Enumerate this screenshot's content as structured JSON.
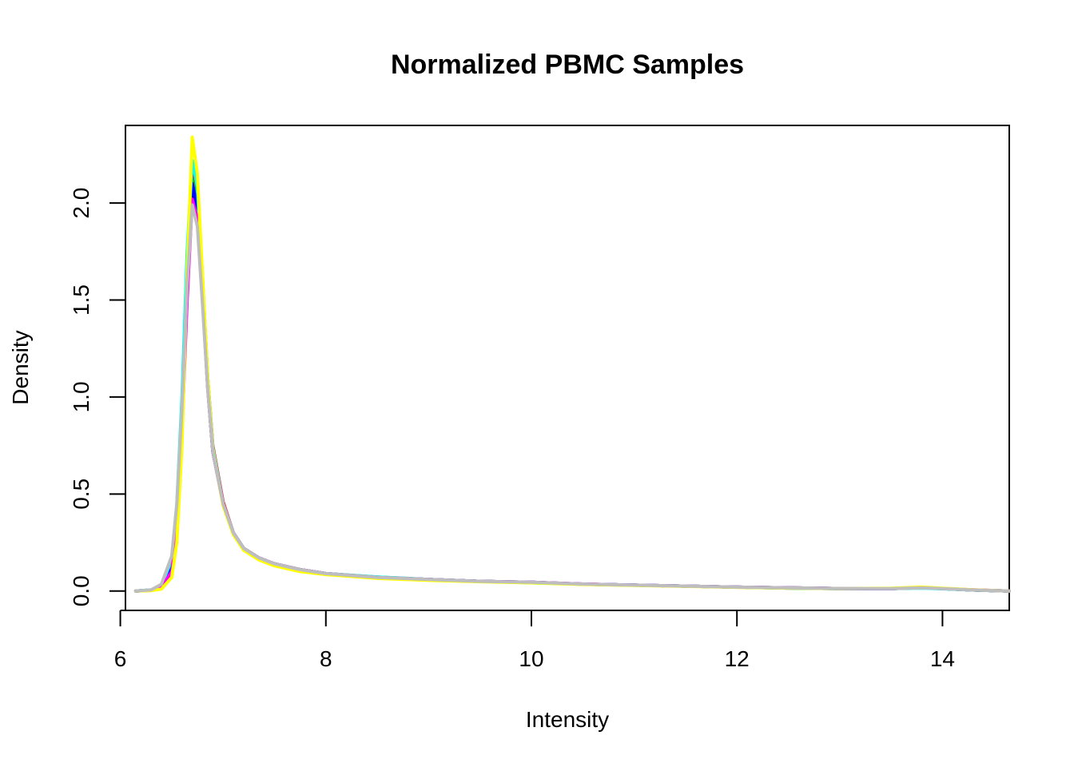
{
  "chart_data": {
    "type": "line",
    "title": "Normalized PBMC Samples",
    "xlabel": "Intensity",
    "ylabel": "Density",
    "xlim": [
      6.05,
      14.65
    ],
    "ylim": [
      -0.1,
      2.4
    ],
    "xticks": [
      6,
      8,
      10,
      12,
      14
    ],
    "yticks": [
      0.0,
      0.5,
      1.0,
      1.5,
      2.0
    ],
    "xtick_labels": [
      "6",
      "8",
      "10",
      "12",
      "14"
    ],
    "ytick_labels": [
      "0.0",
      "0.5",
      "1.0",
      "1.5",
      "2.0"
    ],
    "grid": false,
    "legend": "none",
    "x": [
      6.15,
      6.3,
      6.4,
      6.5,
      6.55,
      6.6,
      6.65,
      6.7,
      6.75,
      6.8,
      6.85,
      6.9,
      7.0,
      7.1,
      7.2,
      7.35,
      7.5,
      7.75,
      8.0,
      8.5,
      9.0,
      9.5,
      10.0,
      10.5,
      11.0,
      11.5,
      12.0,
      12.5,
      13.0,
      13.5,
      13.8,
      14.0,
      14.3,
      14.65
    ],
    "series": [
      {
        "color": "#000000",
        "peak": 2.08,
        "values": [
          0.0,
          0.005,
          0.03,
          0.15,
          0.4,
          0.9,
          1.6,
          2.08,
          1.95,
          1.5,
          1.05,
          0.72,
          0.45,
          0.3,
          0.22,
          0.17,
          0.14,
          0.11,
          0.09,
          0.07,
          0.06,
          0.05,
          0.045,
          0.035,
          0.03,
          0.025,
          0.02,
          0.015,
          0.012,
          0.012,
          0.018,
          0.012,
          0.005,
          0.0
        ]
      },
      {
        "color": "#FF0000",
        "peak": 2.18,
        "values": [
          0.0,
          0.004,
          0.02,
          0.12,
          0.38,
          0.95,
          1.7,
          2.18,
          2.05,
          1.6,
          1.1,
          0.75,
          0.46,
          0.3,
          0.22,
          0.165,
          0.135,
          0.105,
          0.088,
          0.068,
          0.058,
          0.05,
          0.043,
          0.036,
          0.03,
          0.025,
          0.02,
          0.016,
          0.013,
          0.012,
          0.016,
          0.012,
          0.005,
          0.0
        ]
      },
      {
        "color": "#00CD00",
        "peak": 2.12,
        "values": [
          0.0,
          0.005,
          0.025,
          0.14,
          0.4,
          0.93,
          1.65,
          2.12,
          2.0,
          1.55,
          1.07,
          0.73,
          0.45,
          0.3,
          0.22,
          0.17,
          0.14,
          0.11,
          0.09,
          0.072,
          0.06,
          0.05,
          0.044,
          0.035,
          0.03,
          0.025,
          0.02,
          0.016,
          0.013,
          0.012,
          0.017,
          0.012,
          0.005,
          0.0
        ]
      },
      {
        "color": "#0000FF",
        "peak": 2.1,
        "values": [
          0.0,
          0.005,
          0.025,
          0.14,
          0.4,
          0.92,
          1.63,
          2.1,
          1.98,
          1.53,
          1.06,
          0.72,
          0.45,
          0.3,
          0.22,
          0.17,
          0.14,
          0.11,
          0.09,
          0.07,
          0.06,
          0.05,
          0.045,
          0.036,
          0.03,
          0.025,
          0.02,
          0.016,
          0.013,
          0.012,
          0.017,
          0.012,
          0.005,
          0.0
        ]
      },
      {
        "color": "#00FFFF",
        "peak": 2.22,
        "values": [
          0.0,
          0.006,
          0.03,
          0.16,
          0.45,
          1.0,
          1.75,
          2.22,
          2.08,
          1.6,
          1.1,
          0.74,
          0.45,
          0.3,
          0.22,
          0.165,
          0.135,
          0.105,
          0.09,
          0.072,
          0.06,
          0.05,
          0.042,
          0.035,
          0.03,
          0.025,
          0.02,
          0.015,
          0.012,
          0.012,
          0.015,
          0.011,
          0.005,
          0.0
        ]
      },
      {
        "color": "#FF00FF",
        "peak": 2.02,
        "values": [
          0.0,
          0.003,
          0.02,
          0.1,
          0.32,
          0.82,
          1.5,
          2.02,
          1.92,
          1.5,
          1.05,
          0.72,
          0.45,
          0.3,
          0.22,
          0.17,
          0.14,
          0.11,
          0.09,
          0.07,
          0.06,
          0.05,
          0.045,
          0.036,
          0.03,
          0.025,
          0.02,
          0.016,
          0.013,
          0.012,
          0.018,
          0.013,
          0.006,
          0.0
        ]
      },
      {
        "color": "#FFFF00",
        "peak": 2.34,
        "values": [
          0.0,
          0.002,
          0.01,
          0.07,
          0.25,
          0.75,
          1.65,
          2.34,
          2.15,
          1.62,
          1.1,
          0.73,
          0.44,
          0.29,
          0.21,
          0.16,
          0.13,
          0.1,
          0.085,
          0.065,
          0.055,
          0.048,
          0.042,
          0.034,
          0.029,
          0.024,
          0.019,
          0.015,
          0.012,
          0.014,
          0.02,
          0.014,
          0.006,
          0.0
        ]
      },
      {
        "color": "#BEBEBE",
        "peak": 1.99,
        "values": [
          0.0,
          0.006,
          0.035,
          0.18,
          0.45,
          0.95,
          1.58,
          1.99,
          1.88,
          1.47,
          1.04,
          0.72,
          0.45,
          0.3,
          0.22,
          0.17,
          0.14,
          0.11,
          0.09,
          0.07,
          0.06,
          0.05,
          0.045,
          0.036,
          0.03,
          0.025,
          0.02,
          0.016,
          0.013,
          0.012,
          0.016,
          0.012,
          0.005,
          0.0
        ]
      }
    ]
  }
}
